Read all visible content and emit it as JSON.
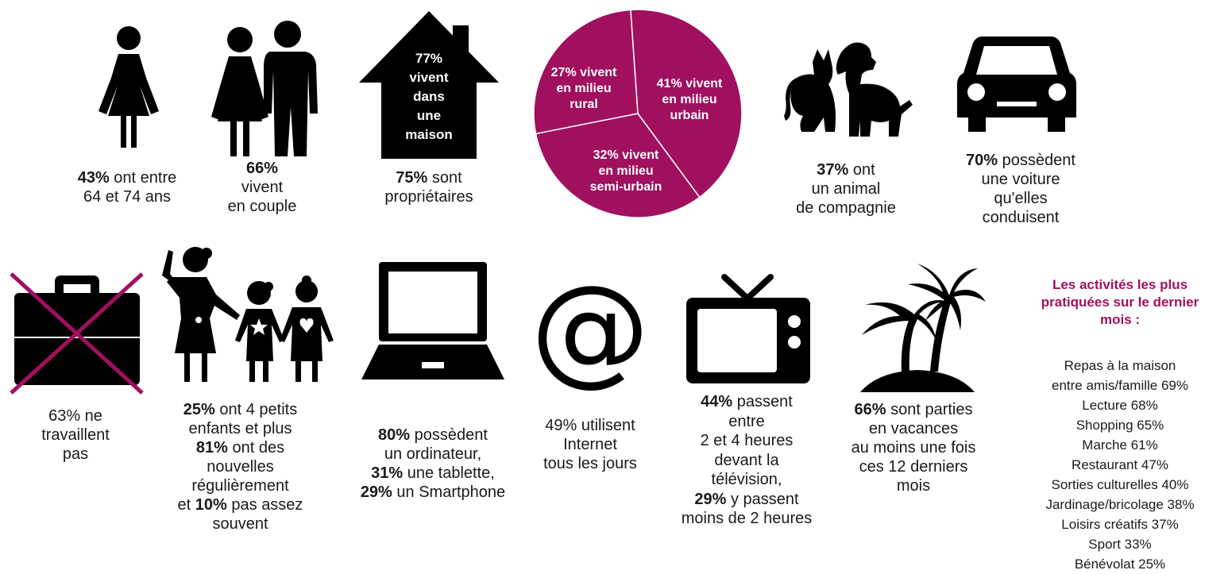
{
  "colors": {
    "accent": "#a0105e",
    "icon": "#000000",
    "text": "#1a1a1a"
  },
  "woman": {
    "icon": "woman-icon",
    "pct": "43%",
    "l1": " ont entre",
    "l2": "64 et 74 ans"
  },
  "couple": {
    "icon": "couple-icon",
    "l1": "66%",
    "l2": "vivent",
    "l3": "en couple"
  },
  "house": {
    "icon": "house-icon",
    "in1": "77%",
    "in2": "vivent",
    "in3": "dans",
    "in4": "une",
    "in5": "maison",
    "pct": "75%",
    "l1": " sont",
    "l2": "propriétaires"
  },
  "pie": {
    "slices": [
      {
        "name": "rural",
        "value": 27,
        "l1": "27% vivent",
        "l2": "en milieu",
        "l3": "rural"
      },
      {
        "name": "urbain",
        "value": 41,
        "l1": "41% vivent",
        "l2": "en milieu",
        "l3": "urbain"
      },
      {
        "name": "semi-urbain",
        "value": 32,
        "l1": "32% vivent",
        "l2": "en milieu",
        "l3": "semi-urbain"
      }
    ]
  },
  "pets": {
    "icon": "cat-dog-icon",
    "pct": "37%",
    "l1": " ont",
    "l2": "un animal",
    "l3": "de compagnie"
  },
  "car": {
    "icon": "car-icon",
    "pct": "70%",
    "l1": " possèdent",
    "l2": "une voiture",
    "l3": "qu'elles",
    "l4": "conduisent"
  },
  "work": {
    "icon": "crossed-briefcase-icon",
    "l1": "63% ne",
    "l2": "travaillent",
    "l3": "pas"
  },
  "family": {
    "icon": "grandmother-children-icon",
    "p1": "25%",
    "l1": " ont 4 petits",
    "l2": "enfants et plus",
    "p2": "81%",
    "l3": " ont des",
    "l4": "nouvelles",
    "l5": "régulièrement",
    "l6a": "et ",
    "p3": "10%",
    "l6b": " pas assez",
    "l7": "souvent"
  },
  "laptop": {
    "icon": "laptop-icon",
    "p1": "80%",
    "l1": " possèdent",
    "l2": "un ordinateur,",
    "p2": "31%",
    "l3": " une tablette,",
    "p3": "29%",
    "l4": " un Smartphone"
  },
  "internet": {
    "icon": "at-sign-icon",
    "l1": "49% utilisent",
    "l2": "Internet",
    "l3": "tous les jours"
  },
  "tv": {
    "icon": "tv-icon",
    "p1": "44%",
    "l1": " passent",
    "l2": "entre",
    "l3": "2 et 4 heures",
    "l4": "devant la",
    "l5": "télévision,",
    "p2": "29%",
    "l6": " y passent",
    "l7": "moins de 2 heures"
  },
  "holiday": {
    "icon": "palm-tree-icon",
    "p1": "66%",
    "l1": " sont parties",
    "l2": "en vacances",
    "l3": "au moins une fois",
    "l4": "ces 12 derniers",
    "l5": "mois"
  },
  "activities": {
    "title1": "Les activités les plus",
    "title2": "pratiquées sur le dernier",
    "title3": "mois :",
    "items": [
      "Repas à la maison",
      "entre amis/famille 69%",
      "Lecture 68%",
      "Shopping 65%",
      "Marche 61%",
      "Restaurant 47%",
      "Sorties culturelles 40%",
      "Jardinage/bricolage 38%",
      "Loisirs créatifs 37%",
      "Sport 33%",
      "Bénévolat 25%"
    ]
  }
}
